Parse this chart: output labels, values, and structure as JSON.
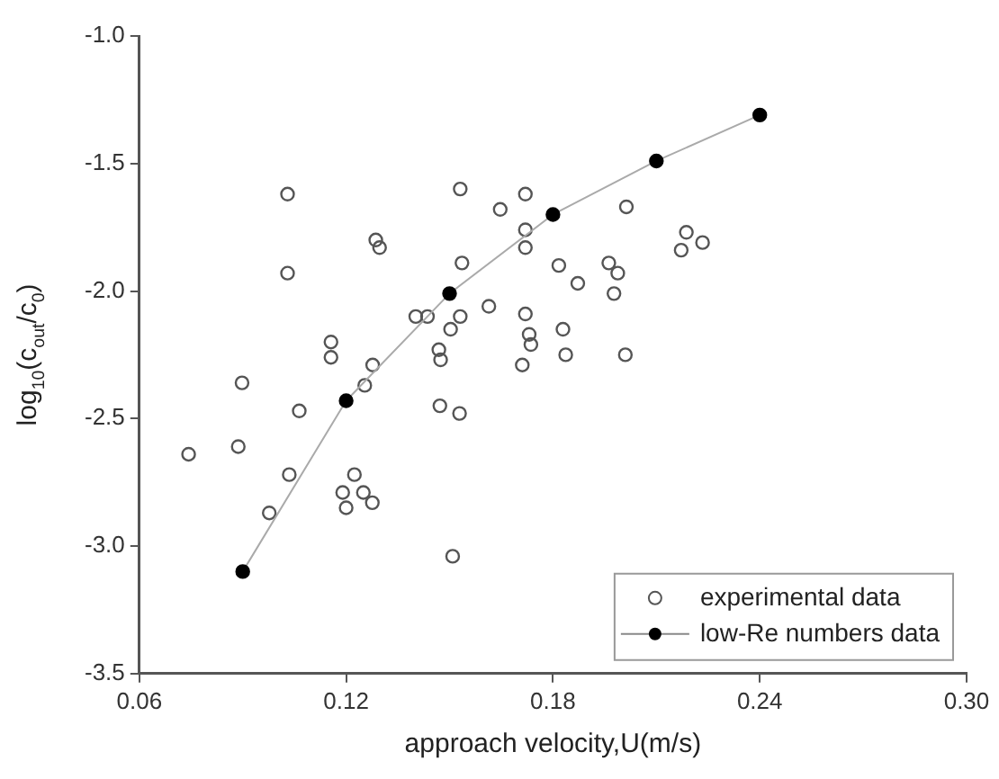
{
  "chart_data": {
    "type": "scatter",
    "xlabel": "approach velocity,U(m/s)",
    "ylabel": "log$_{10}$(c$_{out}$/c$_{0}$)",
    "xlim": [
      0.06,
      0.3
    ],
    "xticks": [
      0.06,
      0.12,
      0.18,
      0.24,
      {
        "value": 0.3,
        "label": "0.30"
      }
    ],
    "ylim": [
      -3.5,
      -1.0
    ],
    "yticks": [
      -3.5,
      {
        "value": -3,
        "label": "-3.0"
      },
      -2.5,
      {
        "value": -2,
        "label": "-2.0"
      },
      -1.5,
      {
        "value": -1,
        "label": "-1.0"
      }
    ],
    "grid": false,
    "legend": "bottom right",
    "series": [
      {
        "name": "experimental data",
        "type": "scatter",
        "marker": "circle",
        "color": "#555555",
        "x": [
          0.103,
          0.103,
          0.1286,
          0.1297,
          0.1531,
          0.1647,
          0.1536,
          0.1614,
          0.1402,
          0.1436,
          0.1531,
          0.1503,
          0.1156,
          0.1156,
          0.1469,
          0.1474,
          0.1277,
          0.0898,
          0.1254,
          0.1472,
          0.1529,
          0.1064,
          0.0743,
          0.0887,
          0.1035,
          0.1224,
          0.119,
          0.125,
          0.1276,
          0.12,
          0.0977,
          0.1509,
          0.172,
          0.172,
          0.172,
          0.2013,
          0.2187,
          0.2234,
          0.2172,
          0.1817,
          0.1962,
          0.1988,
          0.1872,
          0.1977,
          0.172,
          0.1829,
          0.1731,
          0.1736,
          0.1837,
          0.201,
          0.1711
        ],
        "values": [
          -1.62,
          -1.93,
          -1.8,
          -1.83,
          -1.6,
          -1.68,
          -1.89,
          -2.06,
          -2.1,
          -2.1,
          -2.1,
          -2.15,
          -2.2,
          -2.26,
          -2.23,
          -2.27,
          -2.29,
          -2.36,
          -2.37,
          -2.45,
          -2.48,
          -2.47,
          -2.64,
          -2.61,
          -2.72,
          -2.72,
          -2.79,
          -2.79,
          -2.83,
          -2.85,
          -2.87,
          -3.04,
          -1.62,
          -1.76,
          -1.83,
          -1.67,
          -1.77,
          -1.81,
          -1.84,
          -1.9,
          -1.89,
          -1.93,
          -1.97,
          -2.01,
          -2.09,
          -2.15,
          -2.17,
          -2.21,
          -2.25,
          -2.25,
          -2.29
        ]
      },
      {
        "name": "low-Re numbers data",
        "type": "line",
        "marker": "circle",
        "line_style": "solid",
        "color": "#000000",
        "x": [
          0.09,
          0.12,
          0.15,
          0.18,
          0.21,
          0.24
        ],
        "values": [
          -3.1,
          -2.43,
          -2.01,
          -1.7,
          -1.49,
          -1.31
        ]
      }
    ]
  }
}
